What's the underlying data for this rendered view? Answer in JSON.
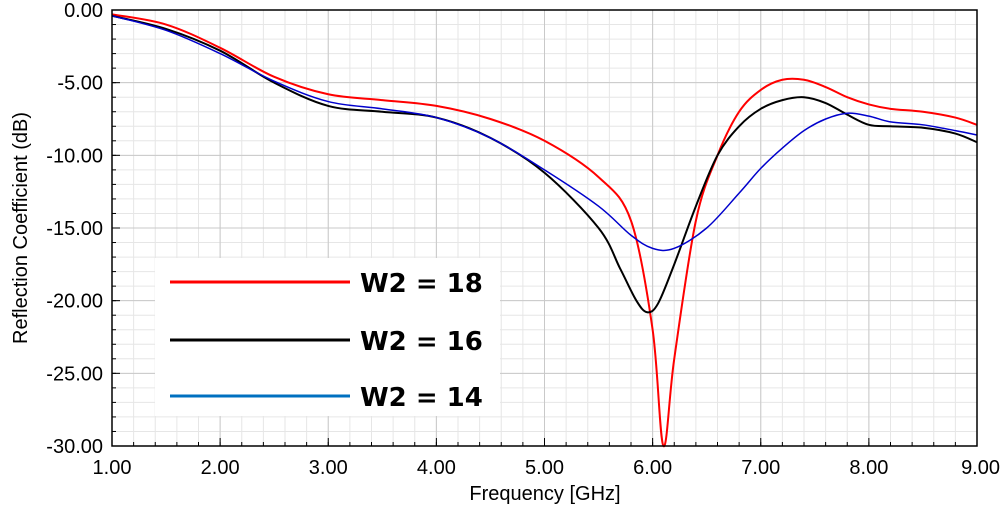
{
  "chart_data": {
    "type": "line",
    "title": "",
    "xlabel": "Frequency [GHz]",
    "ylabel": "Reflection Coefficient (dB)",
    "xlim": [
      1.0,
      9.0
    ],
    "ylim": [
      -30.0,
      0.0
    ],
    "x_ticks": [
      "1.00",
      "2.00",
      "3.00",
      "4.00",
      "5.00",
      "6.00",
      "7.00",
      "8.00",
      "9.00"
    ],
    "y_ticks": [
      "0.00",
      "-5.00",
      "-10.00",
      "-15.00",
      "-20.00",
      "-25.00",
      "-30.00"
    ],
    "grid": true,
    "legend_position": "bottom-left",
    "series": [
      {
        "name": "W2 = 18",
        "color": "#ff0000",
        "x": [
          1.0,
          1.5,
          2.0,
          2.5,
          3.0,
          3.5,
          4.0,
          4.5,
          5.0,
          5.5,
          5.8,
          6.0,
          6.1,
          6.2,
          6.4,
          6.6,
          6.8,
          7.0,
          7.2,
          7.4,
          7.6,
          7.8,
          8.0,
          8.2,
          8.5,
          8.8,
          9.0
        ],
        "y": [
          -0.3,
          -1.0,
          -2.6,
          -4.6,
          -5.8,
          -6.2,
          -6.6,
          -7.5,
          -9.0,
          -11.5,
          -14.5,
          -22.0,
          -30.0,
          -24.0,
          -14.5,
          -10.0,
          -7.0,
          -5.5,
          -4.8,
          -4.8,
          -5.3,
          -6.0,
          -6.5,
          -6.8,
          -7.0,
          -7.4,
          -7.9
        ]
      },
      {
        "name": "W2 = 16",
        "color": "#000000",
        "x": [
          1.0,
          1.5,
          2.0,
          2.5,
          3.0,
          3.5,
          4.0,
          4.5,
          5.0,
          5.5,
          5.7,
          5.85,
          5.95,
          6.05,
          6.2,
          6.4,
          6.6,
          6.8,
          7.0,
          7.2,
          7.4,
          7.6,
          7.8,
          8.0,
          8.2,
          8.5,
          8.8,
          9.0
        ],
        "y": [
          -0.4,
          -1.3,
          -2.8,
          -5.0,
          -6.6,
          -7.0,
          -7.4,
          -8.8,
          -11.2,
          -15.0,
          -17.8,
          -20.0,
          -20.8,
          -20.2,
          -17.5,
          -13.5,
          -10.0,
          -8.0,
          -6.8,
          -6.2,
          -6.0,
          -6.4,
          -7.2,
          -7.9,
          -8.0,
          -8.1,
          -8.5,
          -9.1
        ]
      },
      {
        "name": "W2 = 14",
        "color": "#0000cc",
        "x": [
          1.0,
          1.5,
          2.0,
          2.5,
          3.0,
          3.5,
          4.0,
          4.5,
          5.0,
          5.5,
          5.8,
          6.0,
          6.2,
          6.5,
          6.8,
          7.0,
          7.2,
          7.4,
          7.6,
          7.8,
          8.0,
          8.2,
          8.5,
          8.8,
          9.0
        ],
        "y": [
          -0.4,
          -1.4,
          -3.0,
          -4.9,
          -6.3,
          -6.8,
          -7.4,
          -8.8,
          -11.0,
          -13.5,
          -15.5,
          -16.4,
          -16.4,
          -15.0,
          -12.6,
          -10.9,
          -9.5,
          -8.3,
          -7.5,
          -7.1,
          -7.3,
          -7.7,
          -7.9,
          -8.3,
          -8.6
        ]
      }
    ],
    "legend_line_colors": [
      "#ff0000",
      "#000000",
      "#0070c0"
    ]
  }
}
